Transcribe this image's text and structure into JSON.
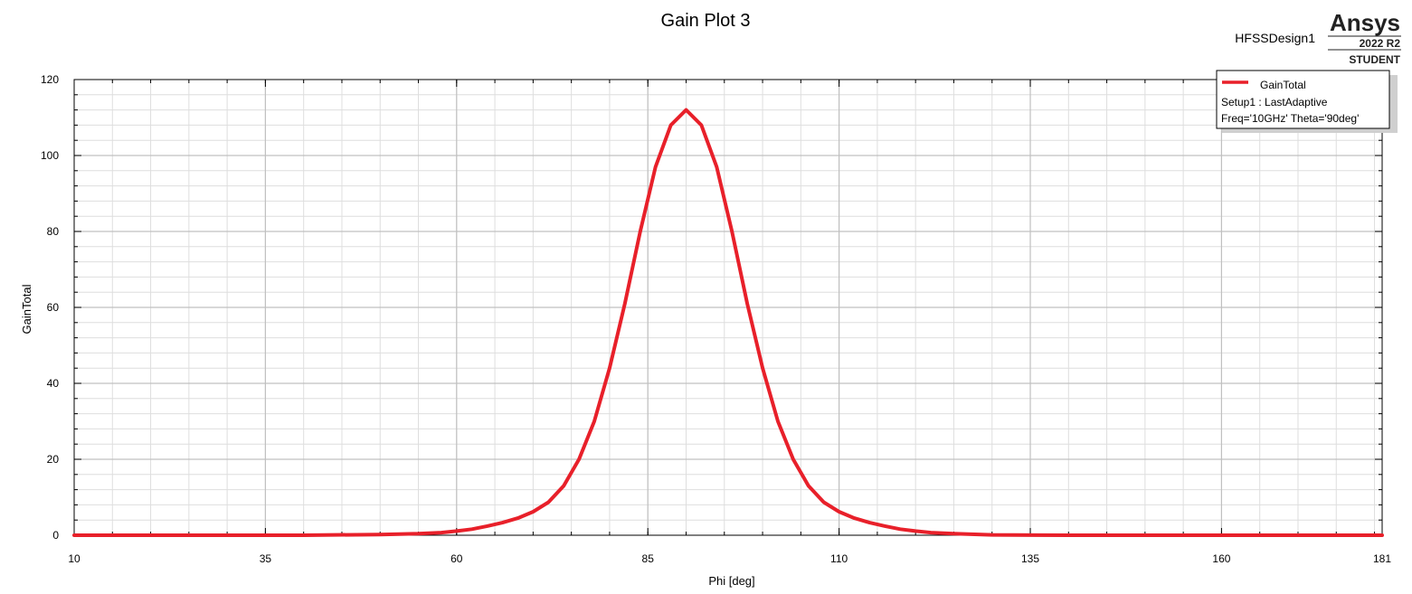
{
  "header": {
    "design_name": "HFSSDesign1",
    "brand": "Ansys",
    "version": "2022 R2",
    "edition": "STUDENT"
  },
  "legend": {
    "series_name": "GainTotal",
    "lines": [
      "Setup1 : LastAdaptive",
      "Freq='10GHz' Theta='90deg'"
    ],
    "placement": "top-right"
  },
  "colors": {
    "series": "#e8202a",
    "grid_major": "#c0c0c0",
    "grid_minor": "#dedede",
    "background": "#ffffff"
  },
  "chart_data": {
    "type": "line",
    "title": "Gain Plot 3",
    "xlabel": "Phi [deg]",
    "ylabel": "GainTotal",
    "xlim": [
      10,
      181
    ],
    "ylim": [
      0,
      120
    ],
    "xticks": [
      10,
      35,
      60,
      85,
      110,
      135,
      160,
      181
    ],
    "yticks": [
      0,
      20,
      40,
      60,
      80,
      100,
      120
    ],
    "grid": true,
    "series": [
      {
        "name": "GainTotal",
        "x": [
          10,
          20,
          30,
          40,
          50,
          55,
          58,
          60,
          62,
          64,
          66,
          68,
          70,
          72,
          74,
          76,
          78,
          80,
          82,
          84,
          86,
          88,
          90,
          92,
          94,
          96,
          98,
          100,
          102,
          104,
          106,
          108,
          110,
          112,
          114,
          116,
          118,
          120,
          122,
          125,
          130,
          140,
          150,
          160,
          170,
          181
        ],
        "y": [
          0,
          0,
          0,
          0,
          0.2,
          0.4,
          0.7,
          1.1,
          1.6,
          2.4,
          3.3,
          4.5,
          6.2,
          8.7,
          13,
          20,
          30,
          44,
          61,
          80,
          97,
          108,
          112,
          108,
          97,
          80,
          61,
          44,
          30,
          20,
          13,
          8.7,
          6.2,
          4.5,
          3.3,
          2.4,
          1.6,
          1.1,
          0.7,
          0.4,
          0.1,
          0,
          0,
          0,
          0,
          0
        ]
      }
    ]
  }
}
